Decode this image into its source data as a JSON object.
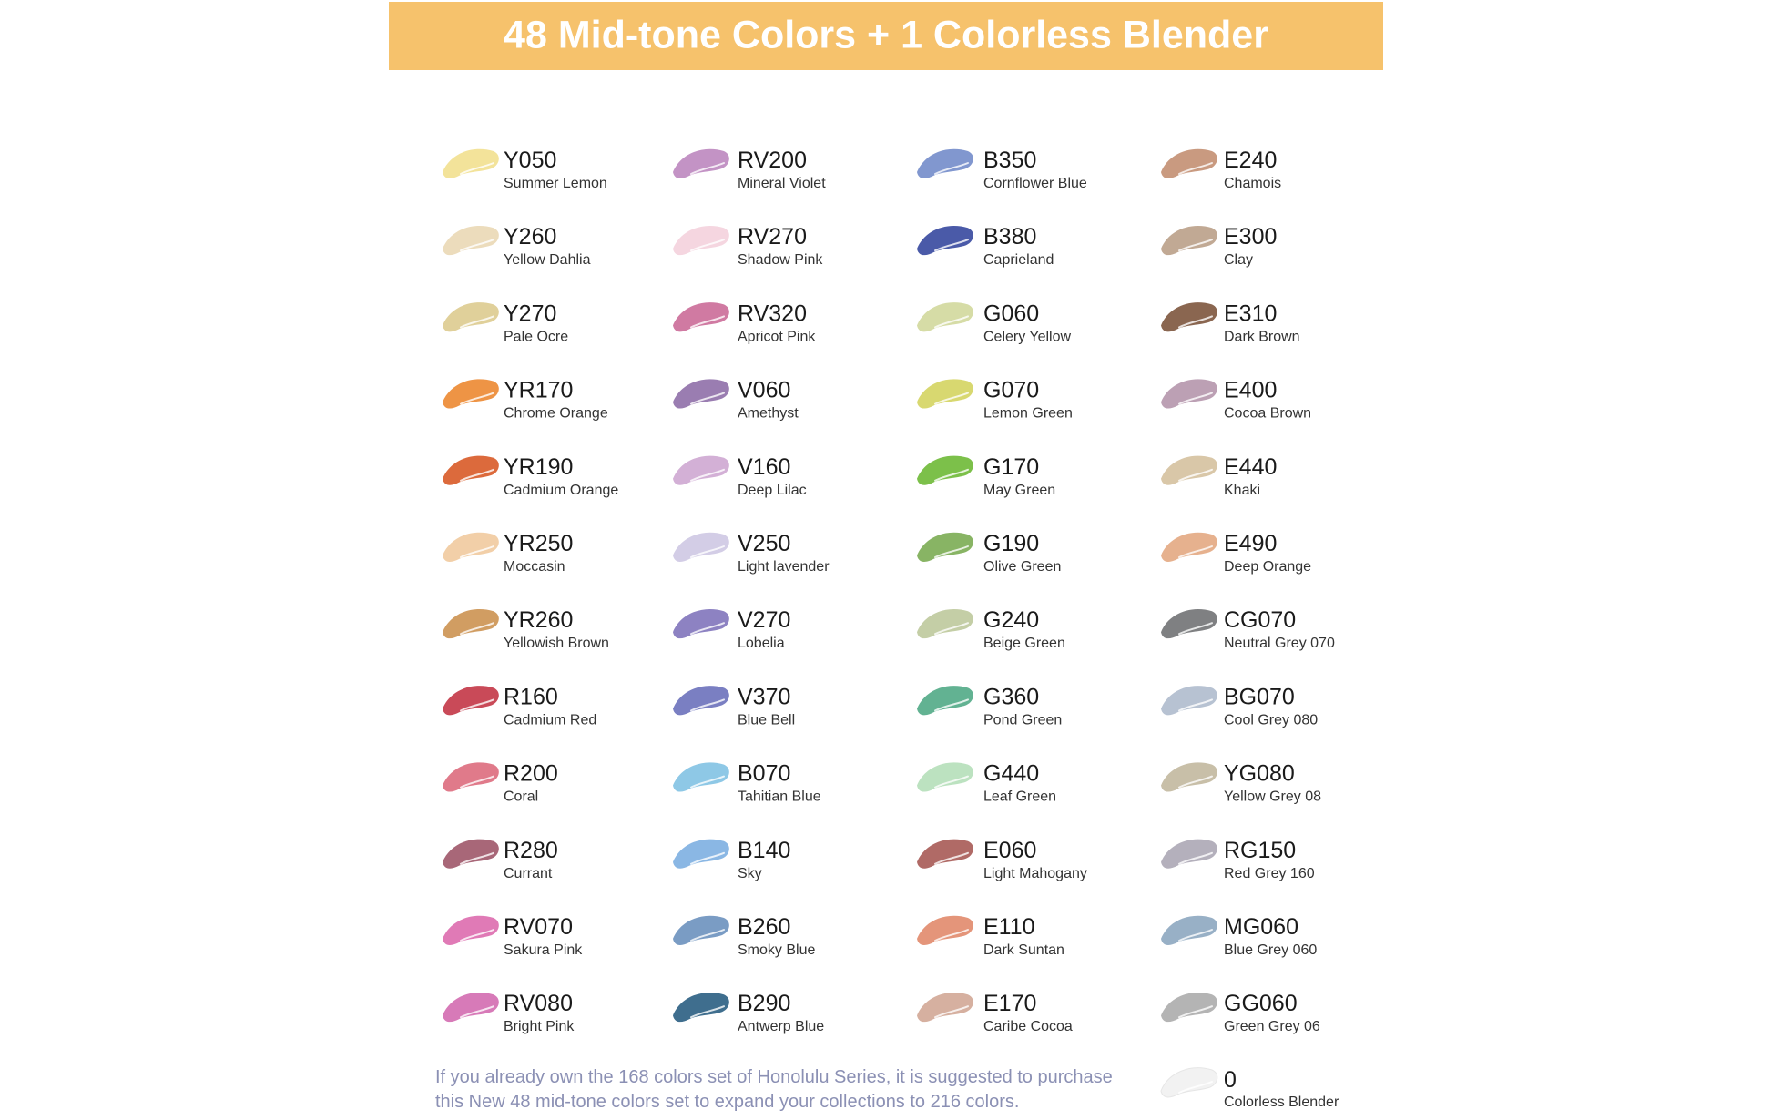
{
  "header": {
    "title": "48 Mid-tone Colors + 1 Colorless Blender"
  },
  "columns": [
    {
      "items": [
        {
          "code": "Y050",
          "name": "Summer Lemon",
          "color": "#f3e39a"
        },
        {
          "code": "Y260",
          "name": "Yellow Dahlia",
          "color": "#ecdcbc"
        },
        {
          "code": "Y270",
          "name": "Pale Ocre",
          "color": "#e0d09a"
        },
        {
          "code": "YR170",
          "name": "Chrome Orange",
          "color": "#ee9445"
        },
        {
          "code": "YR190",
          "name": "Cadmium Orange",
          "color": "#dc6a3c"
        },
        {
          "code": "YR250",
          "name": "Moccasin",
          "color": "#f2cfa8"
        },
        {
          "code": "YR260",
          "name": "Yellowish Brown",
          "color": "#d19d62"
        },
        {
          "code": "R160",
          "name": "Cadmium Red",
          "color": "#c94a58"
        },
        {
          "code": "R200",
          "name": "Coral",
          "color": "#e07a8a"
        },
        {
          "code": "R280",
          "name": "Currant",
          "color": "#a86778"
        },
        {
          "code": "RV070",
          "name": "Sakura Pink",
          "color": "#e07ab6"
        },
        {
          "code": "RV080",
          "name": "Bright Pink",
          "color": "#d77ab8"
        }
      ]
    },
    {
      "items": [
        {
          "code": "RV200",
          "name": "Mineral Violet",
          "color": "#c393c5"
        },
        {
          "code": "RV270",
          "name": "Shadow Pink",
          "color": "#f5d6e0"
        },
        {
          "code": "RV320",
          "name": "Apricot Pink",
          "color": "#d07aa2"
        },
        {
          "code": "V060",
          "name": "Amethyst",
          "color": "#9a7db1"
        },
        {
          "code": "V160",
          "name": "Deep Lilac",
          "color": "#d3b0d6"
        },
        {
          "code": "V250",
          "name": "Light lavender",
          "color": "#d3cde6"
        },
        {
          "code": "V270",
          "name": "Lobelia",
          "color": "#8d82c2"
        },
        {
          "code": "V370",
          "name": "Blue Bell",
          "color": "#7a7fc2"
        },
        {
          "code": "B070",
          "name": "Tahitian Blue",
          "color": "#8ec8e6"
        },
        {
          "code": "B140",
          "name": "Sky",
          "color": "#8ab7e4"
        },
        {
          "code": "B260",
          "name": "Smoky Blue",
          "color": "#7a9cc4"
        },
        {
          "code": "B290",
          "name": "Antwerp Blue",
          "color": "#3f6e8e"
        }
      ]
    },
    {
      "items": [
        {
          "code": "B350",
          "name": "Cornflower Blue",
          "color": "#8197cf"
        },
        {
          "code": "B380",
          "name": "Caprieland",
          "color": "#4a5aa8"
        },
        {
          "code": "G060",
          "name": "Celery Yellow",
          "color": "#d6dca6"
        },
        {
          "code": "G070",
          "name": "Lemon Green",
          "color": "#d8d870"
        },
        {
          "code": "G170",
          "name": "May Green",
          "color": "#7cc04a"
        },
        {
          "code": "G190",
          "name": "Olive Green",
          "color": "#88b464"
        },
        {
          "code": "G240",
          "name": "Beige Green",
          "color": "#c4cea6"
        },
        {
          "code": "G360",
          "name": "Pond Green",
          "color": "#62b292"
        },
        {
          "code": "G440",
          "name": "Leaf Green",
          "color": "#bce2c0"
        },
        {
          "code": "E060",
          "name": "Light Mahogany",
          "color": "#b06a66"
        },
        {
          "code": "E110",
          "name": "Dark Suntan",
          "color": "#e4957a"
        },
        {
          "code": "E170",
          "name": "Caribe Cocoa",
          "color": "#d6b0a0"
        }
      ]
    },
    {
      "items": [
        {
          "code": "E240",
          "name": "Chamois",
          "color": "#c99a80"
        },
        {
          "code": "E300",
          "name": "Clay",
          "color": "#c1a994"
        },
        {
          "code": "E310",
          "name": "Dark Brown",
          "color": "#8a6650"
        },
        {
          "code": "E400",
          "name": "Cocoa Brown",
          "color": "#bca0b4"
        },
        {
          "code": "E440",
          "name": "Khaki",
          "color": "#d9c7a8"
        },
        {
          "code": "E490",
          "name": "Deep Orange",
          "color": "#e6b18e"
        },
        {
          "code": "CG070",
          "name": "Neutral Grey 070",
          "color": "#7f8082"
        },
        {
          "code": "BG070",
          "name": "Cool Grey 080",
          "color": "#b7c2d2"
        },
        {
          "code": "YG080",
          "name": "Yellow Grey 08",
          "color": "#c8bfa8"
        },
        {
          "code": "RG150",
          "name": "Red Grey 160",
          "color": "#b4b0bc"
        },
        {
          "code": "MG060",
          "name": "Blue Grey 060",
          "color": "#98b0c6"
        },
        {
          "code": "GG060",
          "name": "Green Grey 06",
          "color": "#b4b4b4"
        }
      ]
    }
  ],
  "note": [
    "If you already own the 168 colors set of Honolulu Series, it is suggested to purchase",
    "this New 48 mid-tone colors set to expand your collections to 216 colors."
  ],
  "blender": {
    "code": "0",
    "name": "Colorless Blender",
    "color": "#f2f2f2"
  }
}
